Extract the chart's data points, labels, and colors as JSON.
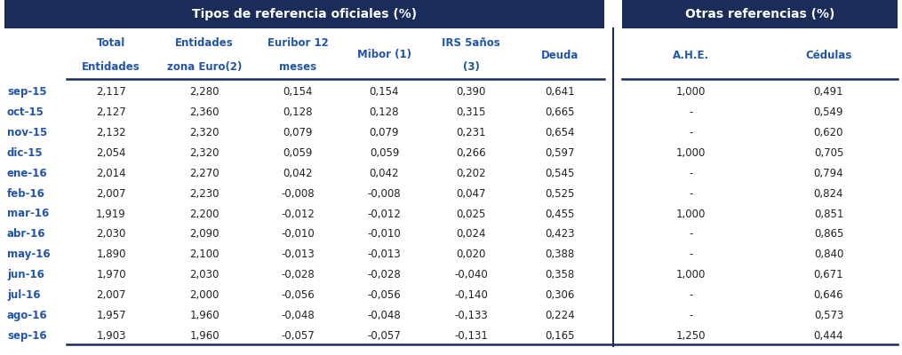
{
  "header_bg_color": "#1a2d5a",
  "header_text_color": "#ffffff",
  "col_header_text_color": "#2255aa",
  "row_label_color": "#2255aa",
  "data_text_color": "#222222",
  "bg_color": "#ffffff",
  "divider_color": "#1a2d5a",
  "header1_text": "Tipos de referencia oficiales (%)",
  "header2_text": "Otras referencias (%)",
  "col_headers_line1": [
    "Total",
    "Entidades",
    "Euribor 12",
    "Mibor (1)",
    "IRS 5años",
    "Deuda",
    "A.H.E.",
    "Cédulas"
  ],
  "col_headers_line2": [
    "Entidades",
    "zona Euro(2)",
    "meses",
    "",
    "(3)",
    "",
    "",
    ""
  ],
  "rows": [
    [
      "sep-15",
      "2,117",
      "2,280",
      "0,154",
      "0,154",
      "0,390",
      "0,641",
      "1,000",
      "0,491"
    ],
    [
      "oct-15",
      "2,127",
      "2,360",
      "0,128",
      "0,128",
      "0,315",
      "0,665",
      "-",
      "0,549"
    ],
    [
      "nov-15",
      "2,132",
      "2,320",
      "0,079",
      "0,079",
      "0,231",
      "0,654",
      "-",
      "0,620"
    ],
    [
      "dic-15",
      "2,054",
      "2,320",
      "0,059",
      "0,059",
      "0,266",
      "0,597",
      "1,000",
      "0,705"
    ],
    [
      "ene-16",
      "2,014",
      "2,270",
      "0,042",
      "0,042",
      "0,202",
      "0,545",
      "-",
      "0,794"
    ],
    [
      "feb-16",
      "2,007",
      "2,230",
      "-0,008",
      "-0,008",
      "0,047",
      "0,525",
      "-",
      "0,824"
    ],
    [
      "mar-16",
      "1,919",
      "2,200",
      "-0,012",
      "-0,012",
      "0,025",
      "0,455",
      "1,000",
      "0,851"
    ],
    [
      "abr-16",
      "2,030",
      "2,090",
      "-0,010",
      "-0,010",
      "0,024",
      "0,423",
      "-",
      "0,865"
    ],
    [
      "may-16",
      "1,890",
      "2,100",
      "-0,013",
      "-0,013",
      "0,020",
      "0,388",
      "-",
      "0,840"
    ],
    [
      "jun-16",
      "1,970",
      "2,030",
      "-0,028",
      "-0,028",
      "-0,040",
      "0,358",
      "1,000",
      "0,671"
    ],
    [
      "jul-16",
      "2,007",
      "2,000",
      "-0,056",
      "-0,056",
      "-0,140",
      "0,306",
      "-",
      "0,646"
    ],
    [
      "ago-16",
      "1,957",
      "1,960",
      "-0,048",
      "-0,048",
      "-0,133",
      "0,224",
      "-",
      "0,573"
    ],
    [
      "sep-16",
      "1,903",
      "1,960",
      "-0,057",
      "-0,057",
      "-0,131",
      "0,165",
      "1,250",
      "0,444"
    ]
  ],
  "figsize": [
    10.15,
    4.0
  ],
  "dpi": 100
}
